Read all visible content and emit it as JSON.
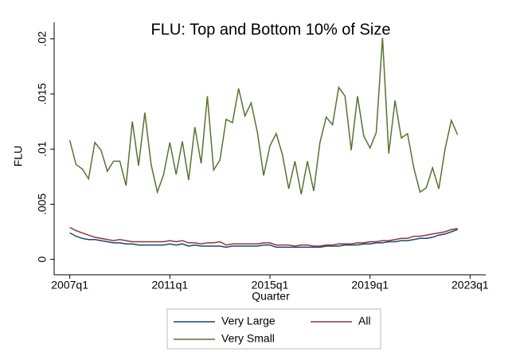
{
  "chart_data": {
    "type": "line",
    "title": "FLU: Top and Bottom 10% of Size",
    "x_label": "Quarter",
    "y_label": "FLU",
    "x": [
      188,
      189,
      190,
      191,
      192,
      193,
      194,
      195,
      196,
      197,
      198,
      199,
      200,
      201,
      202,
      203,
      204,
      205,
      206,
      207,
      208,
      209,
      210,
      211,
      212,
      213,
      214,
      215,
      216,
      217,
      218,
      219,
      220,
      221,
      222,
      223,
      224,
      225,
      226,
      227,
      228,
      229,
      230,
      231,
      232,
      233,
      234,
      235,
      236,
      237,
      238,
      239,
      240,
      241,
      242,
      243,
      244,
      245,
      246,
      247,
      248,
      249,
      250
    ],
    "series": [
      {
        "name": "Very Large",
        "color": "#1a476f",
        "values": [
          0.0024,
          0.0021,
          0.0019,
          0.0018,
          0.0018,
          0.0017,
          0.0016,
          0.0015,
          0.0015,
          0.0014,
          0.0014,
          0.0013,
          0.0013,
          0.0013,
          0.0013,
          0.0013,
          0.0014,
          0.0013,
          0.0014,
          0.0012,
          0.0013,
          0.0012,
          0.0012,
          0.0012,
          0.0012,
          0.0011,
          0.0012,
          0.0012,
          0.0012,
          0.0012,
          0.0012,
          0.0013,
          0.0013,
          0.0011,
          0.0011,
          0.0011,
          0.0011,
          0.0011,
          0.0011,
          0.0011,
          0.0011,
          0.0012,
          0.0012,
          0.0012,
          0.0013,
          0.0013,
          0.0013,
          0.0014,
          0.0014,
          0.0015,
          0.0015,
          0.0016,
          0.0016,
          0.0017,
          0.0017,
          0.0018,
          0.0019,
          0.0019,
          0.002,
          0.0022,
          0.0023,
          0.0025,
          0.0027
        ]
      },
      {
        "name": "All",
        "color": "#90353b",
        "values": [
          0.0029,
          0.0026,
          0.0024,
          0.0022,
          0.002,
          0.0019,
          0.0018,
          0.0017,
          0.0018,
          0.0017,
          0.0016,
          0.0016,
          0.0016,
          0.0016,
          0.0016,
          0.0016,
          0.0017,
          0.0016,
          0.0017,
          0.0015,
          0.0015,
          0.0014,
          0.0015,
          0.0015,
          0.0016,
          0.0013,
          0.0014,
          0.0014,
          0.0014,
          0.0014,
          0.0014,
          0.0015,
          0.0015,
          0.0013,
          0.0013,
          0.0013,
          0.0012,
          0.0013,
          0.0013,
          0.0012,
          0.0012,
          0.0013,
          0.0013,
          0.0014,
          0.0014,
          0.0014,
          0.0015,
          0.0015,
          0.0016,
          0.0016,
          0.0017,
          0.0017,
          0.0018,
          0.0019,
          0.0019,
          0.0021,
          0.0021,
          0.0022,
          0.0023,
          0.0024,
          0.0025,
          0.0027,
          0.0028
        ]
      },
      {
        "name": "Very Small",
        "color": "#55752f",
        "values": [
          0.0108,
          0.0086,
          0.0082,
          0.0073,
          0.0106,
          0.0099,
          0.008,
          0.0089,
          0.0089,
          0.0067,
          0.0125,
          0.0085,
          0.0133,
          0.0086,
          0.0061,
          0.0077,
          0.0106,
          0.0077,
          0.0107,
          0.0072,
          0.012,
          0.0087,
          0.0148,
          0.0081,
          0.009,
          0.0127,
          0.0124,
          0.0155,
          0.013,
          0.0142,
          0.0115,
          0.0076,
          0.0103,
          0.0114,
          0.0095,
          0.0064,
          0.0089,
          0.0059,
          0.0089,
          0.0062,
          0.0106,
          0.0129,
          0.0122,
          0.0156,
          0.0148,
          0.0099,
          0.0148,
          0.0112,
          0.0101,
          0.0115,
          0.0201,
          0.0096,
          0.0144,
          0.011,
          0.0114,
          0.0083,
          0.0061,
          0.0065,
          0.0083,
          0.0064,
          0.01,
          0.0126,
          0.0113
        ]
      }
    ],
    "xlim": [
      185.5,
      254.5
    ],
    "xticks": [
      {
        "value": 188,
        "label": "2007q1"
      },
      {
        "value": 204,
        "label": "2011q1"
      },
      {
        "value": 220,
        "label": "2015q1"
      },
      {
        "value": 236,
        "label": "2019q1"
      },
      {
        "value": 252,
        "label": "2023q1"
      }
    ],
    "ylim": [
      -0.0014,
      0.0215
    ],
    "yticks": [
      0,
      {
        "value": 0.005,
        "label": ".005"
      },
      {
        "value": 0.01,
        "label": ".01"
      },
      {
        "value": 0.015,
        "label": ".015"
      },
      {
        "value": 0.02,
        "label": ".02"
      }
    ],
    "grid": false
  }
}
